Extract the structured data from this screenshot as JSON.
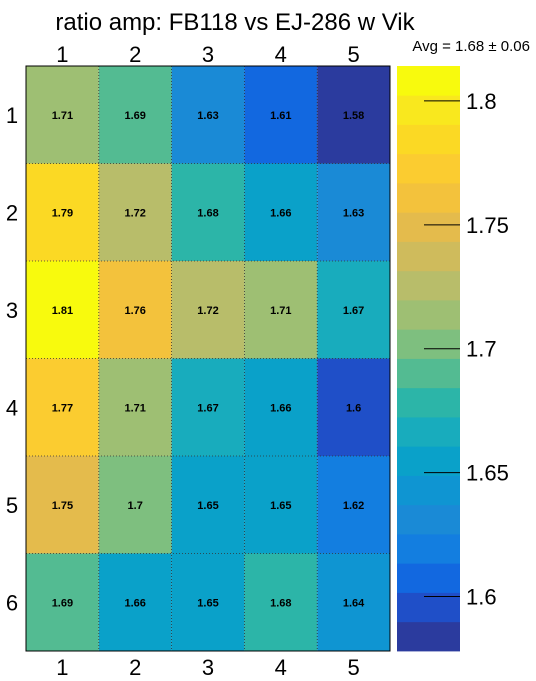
{
  "chart_data": {
    "type": "heatmap",
    "title": "ratio amp: FB118 vs EJ-286 w Vik",
    "subtitle": "Avg = 1.68 ± 0.06",
    "x_ticks": [
      "1",
      "2",
      "3",
      "4",
      "5"
    ],
    "y_ticks": [
      "1",
      "2",
      "3",
      "4",
      "5",
      "6"
    ],
    "values": [
      [
        1.71,
        1.69,
        1.63,
        1.61,
        1.58
      ],
      [
        1.79,
        1.72,
        1.68,
        1.66,
        1.63
      ],
      [
        1.81,
        1.76,
        1.72,
        1.71,
        1.67
      ],
      [
        1.77,
        1.71,
        1.67,
        1.66,
        1.6
      ],
      [
        1.75,
        1.7,
        1.65,
        1.65,
        1.62
      ],
      [
        1.69,
        1.66,
        1.65,
        1.68,
        1.64
      ]
    ],
    "cell_labels": [
      [
        "1.71",
        "1.69",
        "1.63",
        "1.61",
        "1.58"
      ],
      [
        "1.79",
        "1.72",
        "1.68",
        "1.66",
        "1.63"
      ],
      [
        "1.81",
        "1.76",
        "1.72",
        "1.71",
        "1.67"
      ],
      [
        "1.77",
        "1.71",
        "1.67",
        "1.66",
        "1.6"
      ],
      [
        "1.75",
        "1.7",
        "1.65",
        "1.65",
        "1.62"
      ],
      [
        "1.69",
        "1.66",
        "1.65",
        "1.68",
        "1.64"
      ]
    ],
    "colorbar": {
      "range": [
        1.578,
        1.8141
      ],
      "ticks": [
        1.6,
        1.65,
        1.7,
        1.75,
        1.8
      ],
      "tick_labels": [
        "1.6",
        "1.65",
        "1.7",
        "1.75",
        "1.8"
      ],
      "colors": [
        "#2b3b9e",
        "#1f4fc8",
        "#1268e0",
        "#137ee0",
        "#1a8ad6",
        "#0f95d2",
        "#0aa1c9",
        "#18acbd",
        "#2cb5a8",
        "#53bb92",
        "#7ebf7f",
        "#9ebf73",
        "#b8bd6a",
        "#cfbb5c",
        "#e4bb4c",
        "#f3c23c",
        "#fbcc30",
        "#fbd924",
        "#f9e81e",
        "#f8fa0d"
      ]
    }
  }
}
